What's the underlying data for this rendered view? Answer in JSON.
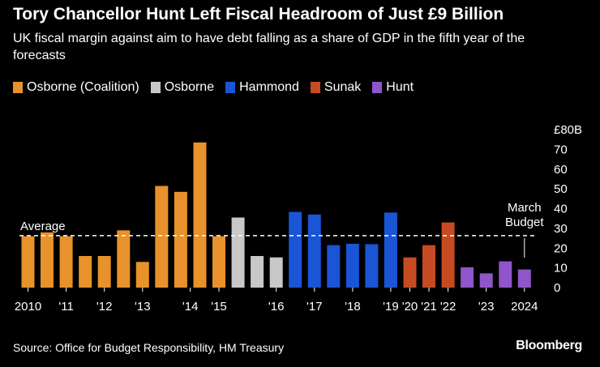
{
  "title": "Tory Chancellor Hunt Left Fiscal Headroom of Just £9 Billion",
  "subtitle": "UK fiscal margin against aim to have debt falling as a share of GDP in the fifth year of the forecasts",
  "source": "Source: Office for Budget Responsibility, HM Treasury",
  "brand": "Bloomberg",
  "chart_data": {
    "type": "bar",
    "title": "Tory Chancellor Hunt Left Fiscal Headroom of Just £9 Billion",
    "subtitle": "UK fiscal margin against aim to have debt falling as a share of GDP in the fifth year of the forecasts",
    "ylim": [
      0,
      80
    ],
    "y_ticks": [
      0,
      10,
      20,
      30,
      40,
      50,
      60,
      70,
      80
    ],
    "y_tick_labels": [
      "0",
      "10",
      "20",
      "30",
      "40",
      "50",
      "60",
      "70",
      "£80B"
    ],
    "legend_placement": "top-left",
    "grid": false,
    "series_colors": {
      "Osborne (Coalition)": "#e8922b",
      "Osborne": "#c8c8c8",
      "Hammond": "#1a55d6",
      "Sunak": "#c64b22",
      "Hunt": "#9055c9"
    },
    "legend": [
      "Osborne (Coalition)",
      "Osborne",
      "Hammond",
      "Sunak",
      "Hunt"
    ],
    "bars": [
      {
        "series": "Osborne (Coalition)",
        "value": 26
      },
      {
        "series": "Osborne (Coalition)",
        "value": 28
      },
      {
        "series": "Osborne (Coalition)",
        "value": 26
      },
      {
        "series": "Osborne (Coalition)",
        "value": 16
      },
      {
        "series": "Osborne (Coalition)",
        "value": 16
      },
      {
        "series": "Osborne (Coalition)",
        "value": 29
      },
      {
        "series": "Osborne (Coalition)",
        "value": 13
      },
      {
        "series": "Osborne (Coalition)",
        "value": 51.5
      },
      {
        "series": "Osborne (Coalition)",
        "value": 48.5
      },
      {
        "series": "Osborne (Coalition)",
        "value": 73.5
      },
      {
        "series": "Osborne (Coalition)",
        "value": 26
      },
      {
        "series": "Osborne",
        "value": 35.5
      },
      {
        "series": "Osborne",
        "value": 16
      },
      {
        "series": "Osborne",
        "value": 15.3
      },
      {
        "series": "Hammond",
        "value": 38.3
      },
      {
        "series": "Hammond",
        "value": 37
      },
      {
        "series": "Hammond",
        "value": 21.5
      },
      {
        "series": "Hammond",
        "value": 22.2
      },
      {
        "series": "Hammond",
        "value": 22
      },
      {
        "series": "Hammond",
        "value": 38
      },
      {
        "series": "Sunak",
        "value": 15.3
      },
      {
        "series": "Sunak",
        "value": 21.5
      },
      {
        "series": "Sunak",
        "value": 33
      },
      {
        "series": "Hunt",
        "value": 10.3
      },
      {
        "series": "Hunt",
        "value": 7.2
      },
      {
        "series": "Hunt",
        "value": 13.3
      },
      {
        "series": "Hunt",
        "value": 9.2
      }
    ],
    "x_tick_labels": [
      {
        "label": "2010",
        "bar": 0
      },
      {
        "label": "'11",
        "bar": 2
      },
      {
        "label": "'12",
        "bar": 4
      },
      {
        "label": "'13",
        "bar": 6
      },
      {
        "label": "'14",
        "bar": 8.5
      },
      {
        "label": "'15",
        "bar": 10
      },
      {
        "label": "'16",
        "bar": 13
      },
      {
        "label": "'17",
        "bar": 15
      },
      {
        "label": "'18",
        "bar": 17
      },
      {
        "label": "'19",
        "bar": 19
      },
      {
        "label": "'20",
        "bar": 20
      },
      {
        "label": "'21",
        "bar": 21
      },
      {
        "label": "'22",
        "bar": 22
      },
      {
        "label": "'23",
        "bar": 24
      },
      {
        "label": "2024",
        "bar": 26
      }
    ],
    "average": {
      "label": "Average",
      "value": 26.3
    },
    "annotation": {
      "lines": [
        "March",
        "Budget"
      ],
      "bar": 26
    }
  }
}
